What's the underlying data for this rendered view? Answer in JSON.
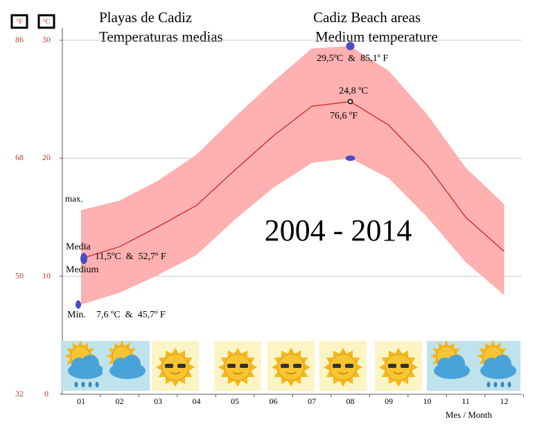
{
  "chart_data": {
    "type": "line",
    "title": "Playas de Cadiz",
    "subtitle": "Temperaturas medias",
    "title_english": "Cadiz Beach areas",
    "subtitle_english": "Medium temperature",
    "period": "2004 - 2014",
    "y_label": "°C",
    "y2_label": "°F",
    "x_label": "Mes / Month",
    "categories": [
      "01",
      "02",
      "03",
      "04",
      "05",
      "06",
      "07",
      "08",
      "09",
      "10",
      "11",
      "12"
    ],
    "series": [
      {
        "name": "max.",
        "color": "#ffb0b0",
        "values": [
          15.6,
          16.4,
          18.1,
          20.3,
          23.5,
          26.5,
          29.3,
          29.5,
          27.4,
          23.7,
          19.2,
          16.1
        ]
      },
      {
        "name": "Media",
        "color": "#cc2a22",
        "values": [
          11.5,
          12.5,
          14.2,
          16.0,
          19.0,
          21.9,
          24.4,
          24.8,
          22.8,
          19.4,
          15.0,
          12.1
        ]
      },
      {
        "name": "Min.",
        "color": "#ffb0b0",
        "values": [
          7.6,
          8.6,
          10.1,
          11.8,
          14.8,
          17.5,
          19.6,
          20.0,
          18.3,
          15.0,
          11.2,
          8.4
        ]
      }
    ],
    "band_color": "#ffb0b0",
    "ylim": [
      0,
      30
    ],
    "yticks": [
      0,
      10,
      20,
      30
    ],
    "y2lim": [
      32,
      86
    ],
    "y2ticks": [
      32,
      50,
      68,
      86
    ],
    "grid": true,
    "annotations": [
      "29,5ºC  &  85,1º F",
      "24,8 ºC",
      "76,6 ºF",
      "Medium",
      "11,5ºC  &  52,7º F",
      "7,6 ºC  &  45,7º F"
    ]
  }
}
